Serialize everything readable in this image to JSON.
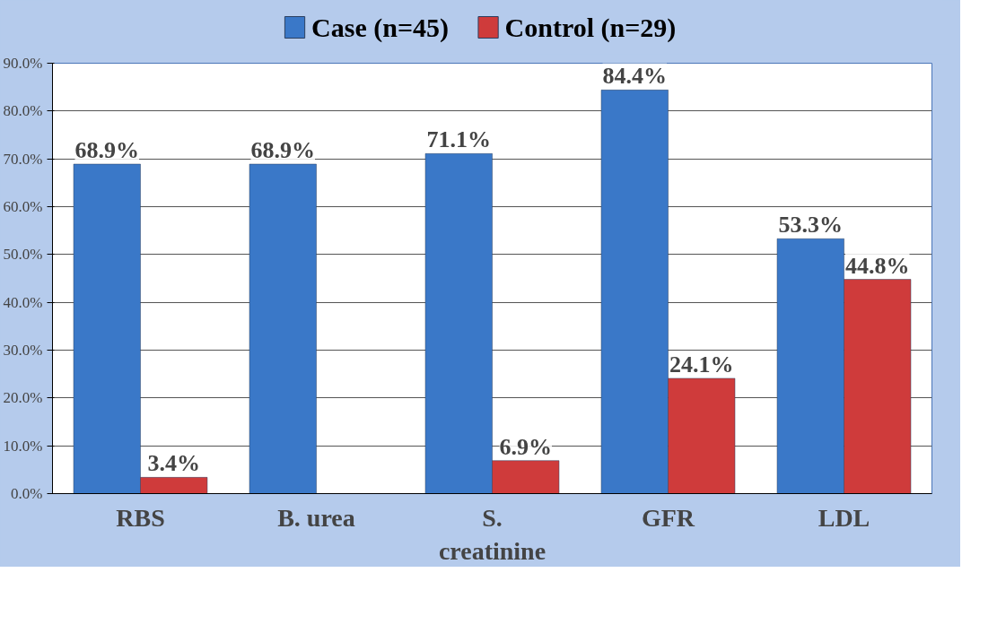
{
  "chart_data": {
    "type": "bar",
    "categories": [
      "RBS",
      "B. urea",
      "S. creatinine",
      "GFR",
      "LDL"
    ],
    "series": [
      {
        "name": "Case (n=45)",
        "color": "#3a78c8",
        "values": [
          68.9,
          68.9,
          71.1,
          84.4,
          53.3
        ],
        "value_labels": [
          "68.9%",
          "68.9%",
          "71.1%",
          "84.4%",
          "53.3%"
        ]
      },
      {
        "name": "Control (n=29)",
        "color": "#cf3b3b",
        "values": [
          3.4,
          null,
          6.9,
          24.1,
          44.8
        ],
        "value_labels": [
          "3.4%",
          null,
          "6.9%",
          "24.1%",
          "44.8%"
        ]
      }
    ],
    "ylim": [
      0,
      90
    ],
    "yticks": [
      {
        "value": 0,
        "label": "0.0%"
      },
      {
        "value": 10,
        "label": "10.0%"
      },
      {
        "value": 20,
        "label": "20.0%"
      },
      {
        "value": 30,
        "label": "30.0%"
      },
      {
        "value": 40,
        "label": "40.0%"
      },
      {
        "value": 50,
        "label": "50.0%"
      },
      {
        "value": 60,
        "label": "60.0%"
      },
      {
        "value": 70,
        "label": "70.0%"
      },
      {
        "value": 80,
        "label": "80.0%"
      },
      {
        "value": 90,
        "label": "90.0%"
      }
    ],
    "grid": "y",
    "legend": "top"
  }
}
